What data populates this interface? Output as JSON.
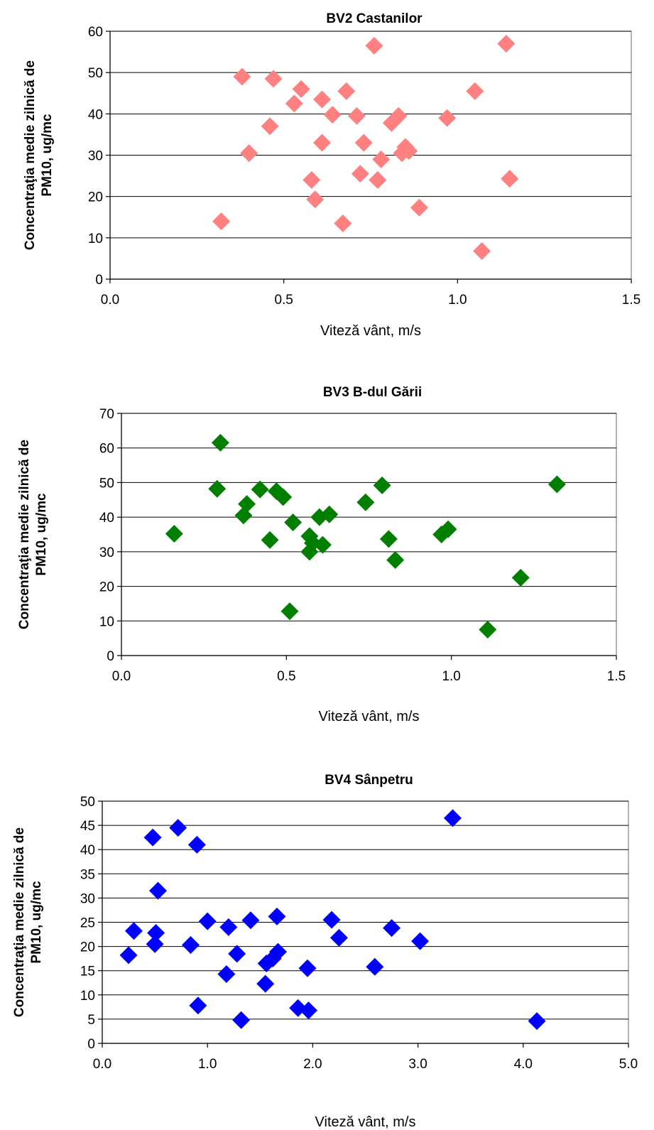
{
  "chart_data": [
    {
      "type": "scatter",
      "title": "BV2 Castanilor",
      "xlabel": "Viteză vânt, m/s",
      "ylabel_line1": "Concentraţia medie zilnică de",
      "ylabel_line2": "PM10, ug/mc",
      "xlim": [
        0,
        1.5
      ],
      "ylim": [
        0,
        60
      ],
      "xticks": [
        "0.0",
        "0.5",
        "1.0",
        "1.5"
      ],
      "yticks": [
        "0",
        "10",
        "20",
        "30",
        "40",
        "50",
        "60"
      ],
      "grid": "horizontal",
      "color": "#FF8080",
      "x": [
        0.32,
        0.38,
        0.4,
        0.46,
        0.47,
        0.53,
        0.55,
        0.58,
        0.59,
        0.61,
        0.61,
        0.64,
        0.67,
        0.68,
        0.71,
        0.72,
        0.73,
        0.76,
        0.77,
        0.78,
        0.81,
        0.83,
        0.84,
        0.85,
        0.86,
        0.89,
        0.97,
        1.05,
        1.07,
        1.14,
        1.15
      ],
      "y": [
        14,
        49,
        30.5,
        37,
        48.5,
        42.5,
        46,
        24,
        19.3,
        33,
        43.5,
        39.8,
        13.5,
        45.5,
        39.5,
        25.5,
        33,
        56.5,
        24,
        29,
        37.8,
        39.5,
        30.5,
        32,
        31,
        17.3,
        39,
        45.5,
        6.8,
        57,
        24.3
      ]
    },
    {
      "type": "scatter",
      "title": "BV3 B-dul Gării",
      "xlabel": "Viteză vânt, m/s",
      "ylabel_line1": "Concentraţia medie zilnică de",
      "ylabel_line2": "PM10, ug/mc",
      "xlim": [
        0,
        1.5
      ],
      "ylim": [
        0,
        70
      ],
      "xticks": [
        "0.0",
        "0.5",
        "1.0",
        "1.5"
      ],
      "yticks": [
        "0",
        "10",
        "20",
        "30",
        "40",
        "50",
        "60",
        "70"
      ],
      "grid": "horizontal",
      "color": "#007F00",
      "x": [
        0.16,
        0.29,
        0.3,
        0.37,
        0.38,
        0.42,
        0.45,
        0.47,
        0.49,
        0.51,
        0.52,
        0.57,
        0.57,
        0.58,
        0.6,
        0.61,
        0.63,
        0.74,
        0.79,
        0.81,
        0.83,
        0.97,
        0.99,
        1.11,
        1.21,
        1.32
      ],
      "y": [
        35.2,
        48.2,
        61.5,
        40.5,
        43.8,
        48,
        33.4,
        47.5,
        45.8,
        12.8,
        38.5,
        30,
        34.5,
        32.5,
        40,
        32,
        40.8,
        44.3,
        49.2,
        33.7,
        27.6,
        35,
        36.5,
        7.5,
        22.5,
        49.5
      ]
    },
    {
      "type": "scatter",
      "title": "BV4 Sânpetru",
      "xlabel": "Viteză vânt, m/s",
      "ylabel_line1": "Concentraţia medie zilnică de",
      "ylabel_line2": "PM10, ug/mc",
      "xlim": [
        0,
        5
      ],
      "ylim": [
        0,
        50
      ],
      "xticks": [
        "0.0",
        "1.0",
        "2.0",
        "3.0",
        "4.0",
        "5.0"
      ],
      "yticks": [
        "0",
        "5",
        "10",
        "15",
        "20",
        "25",
        "30",
        "35",
        "40",
        "45",
        "50"
      ],
      "grid": "horizontal",
      "color": "#0000FF",
      "x": [
        0.25,
        0.3,
        0.48,
        0.5,
        0.51,
        0.53,
        0.72,
        0.84,
        0.9,
        0.91,
        1.0,
        1.18,
        1.2,
        1.28,
        1.32,
        1.41,
        1.55,
        1.56,
        1.62,
        1.66,
        1.67,
        1.86,
        1.95,
        1.96,
        2.18,
        2.25,
        2.59,
        2.75,
        3.02,
        3.33,
        4.13
      ],
      "y": [
        18.2,
        23.2,
        42.5,
        20.5,
        22.8,
        31.5,
        44.5,
        20.3,
        41,
        7.8,
        25.2,
        14.3,
        24,
        18.5,
        4.8,
        25.4,
        12.3,
        16.5,
        17.5,
        26.2,
        18.9,
        7.3,
        15.5,
        6.8,
        25.5,
        21.8,
        15.8,
        23.8,
        21.1,
        46.5,
        4.6
      ]
    }
  ]
}
